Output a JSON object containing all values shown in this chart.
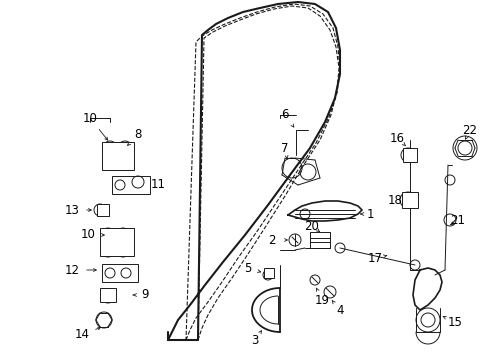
{
  "background_color": "#ffffff",
  "line_color": "#1a1a1a",
  "fig_width": 4.89,
  "fig_height": 3.6,
  "dpi": 100,
  "door_outer": {
    "x": [
      0.3,
      0.31,
      0.33,
      0.36,
      0.4,
      0.445,
      0.49,
      0.53,
      0.56,
      0.58,
      0.595,
      0.605,
      0.61,
      0.61,
      0.605,
      0.595,
      0.575,
      0.55,
      0.52,
      0.49,
      0.46,
      0.43,
      0.405,
      0.385,
      0.37,
      0.3
    ],
    "y": [
      0.03,
      0.03,
      0.04,
      0.05,
      0.07,
      0.1,
      0.14,
      0.19,
      0.24,
      0.3,
      0.36,
      0.43,
      0.5,
      0.57,
      0.64,
      0.71,
      0.78,
      0.84,
      0.89,
      0.93,
      0.95,
      0.97,
      0.97,
      0.97,
      0.96,
      0.03
    ]
  },
  "door_inner_dash1": {
    "x": [
      0.315,
      0.332,
      0.355,
      0.388,
      0.428,
      0.472,
      0.514,
      0.55,
      0.576,
      0.592,
      0.602,
      0.606,
      0.605,
      0.598,
      0.578,
      0.55,
      0.52,
      0.49,
      0.462,
      0.44,
      0.42,
      0.408,
      0.395,
      0.315
    ],
    "y": [
      0.06,
      0.07,
      0.09,
      0.11,
      0.14,
      0.18,
      0.23,
      0.28,
      0.33,
      0.39,
      0.46,
      0.52,
      0.58,
      0.65,
      0.72,
      0.79,
      0.85,
      0.89,
      0.92,
      0.93,
      0.94,
      0.94,
      0.93,
      0.06
    ]
  },
  "door_inner_dash2": {
    "x": [
      0.326,
      0.344,
      0.368,
      0.402,
      0.443,
      0.486,
      0.526,
      0.558,
      0.581,
      0.595,
      0.603,
      0.606,
      0.604,
      0.596,
      0.574,
      0.545,
      0.514,
      0.485,
      0.458,
      0.438,
      0.42,
      0.408,
      0.326
    ],
    "y": [
      0.09,
      0.1,
      0.12,
      0.14,
      0.18,
      0.22,
      0.27,
      0.32,
      0.37,
      0.43,
      0.5,
      0.56,
      0.62,
      0.68,
      0.75,
      0.81,
      0.86,
      0.9,
      0.92,
      0.93,
      0.94,
      0.93,
      0.09
    ]
  }
}
